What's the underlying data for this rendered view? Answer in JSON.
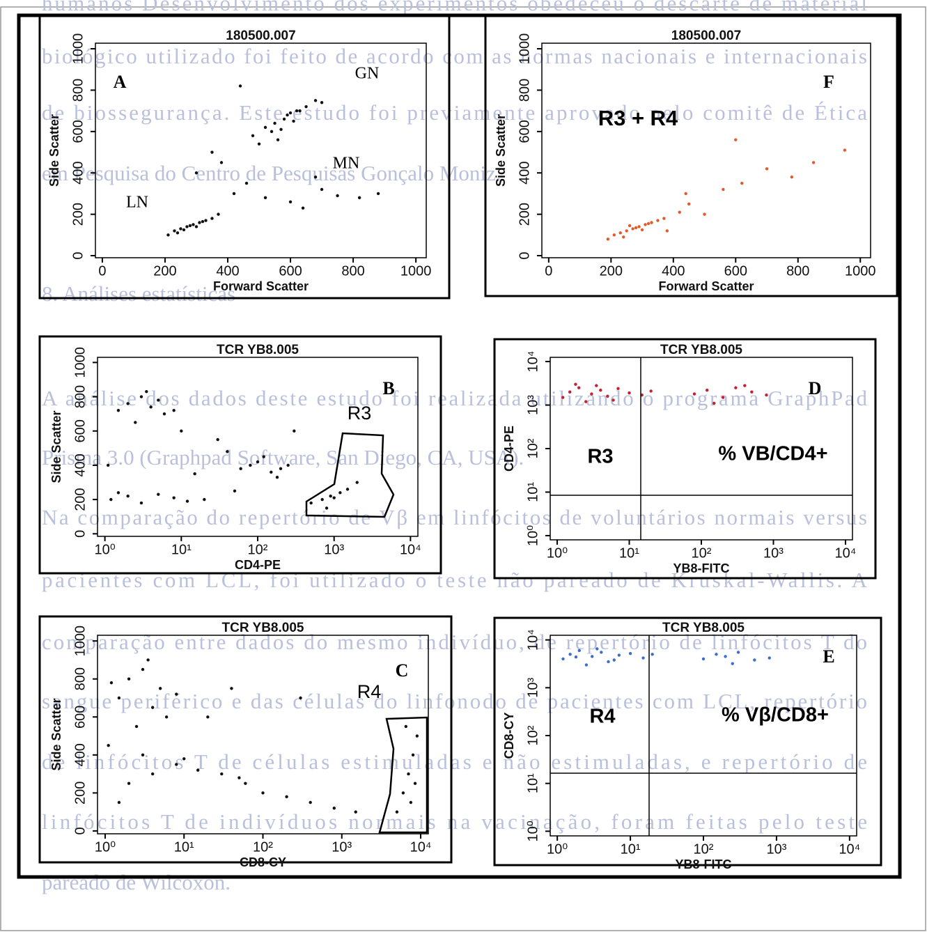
{
  "background_text": [
    "humanos Desenvolvimento dos experimentos obedeceu o descarte de material",
    "biológico utilizado foi feito de acordo com as normas nacionais e internacionais",
    "de biossegurança. Este estudo foi previamente aprovado pelo comitê de Ética",
    "em Pesquisa do Centro de Pesquisas Gonçalo Moniz.",
    "8. Análises estatísticas",
    "A análise dos dados deste estudo foi realizada utilizando o programa GraphPad",
    "Prisma 3.0 (Graphpad Software, San Diego, CA, USA).",
    "Na comparação do repertório de Vβ em linfócitos de voluntários normais versus",
    "pacientes com LCL, foi utilizado o teste não pareado de Kruskal-Wallis. A",
    "comparação entre dados do mesmo indivíduo, de repertório de linfócitos T do",
    "sangue periférico e das células do linfonodo de pacientes com LCL, repertório",
    "de linfócitos T de células estimuladas e não estimuladas, e repertório de",
    "linfócitos T de indivíduos normais na vacinação, foram feitas pelo teste",
    "pareado de Wilcoxon."
  ],
  "chart_data": [
    {
      "type": "scatter",
      "title": "180500.007",
      "x_label": "Forward Scatter",
      "y_label": "Side Scatter",
      "xscale": "linear",
      "yscale": "linear",
      "xlim": [
        -22,
        1033
      ],
      "ylim": [
        -10,
        1027
      ],
      "xticks": [
        0,
        200,
        400,
        600,
        800,
        1000
      ],
      "yticks": [
        0,
        200,
        400,
        600,
        800,
        1000
      ],
      "annotations": [
        "A",
        "GN",
        "MN",
        "LN"
      ],
      "series": [
        {
          "color": "#111111",
          "x": [
            210,
            230,
            250,
            270,
            290,
            310,
            330,
            350,
            240,
            280,
            300,
            320,
            260,
            370,
            480,
            520,
            550,
            580,
            600,
            620,
            650,
            680,
            540,
            570,
            610,
            590,
            630,
            560,
            500,
            700,
            420,
            460,
            520,
            600,
            700,
            750,
            820,
            880,
            380,
            350,
            440,
            300,
            680,
            640
          ],
          "values": [
            100,
            120,
            130,
            140,
            150,
            160,
            170,
            180,
            110,
            145,
            140,
            165,
            125,
            200,
            580,
            620,
            640,
            660,
            690,
            700,
            720,
            750,
            600,
            610,
            650,
            680,
            700,
            560,
            540,
            740,
            300,
            350,
            280,
            260,
            320,
            290,
            280,
            300,
            450,
            500,
            820,
            400,
            380,
            230
          ]
        }
      ]
    },
    {
      "type": "scatter",
      "title": "180500.007",
      "x_label": "Forward Scatter",
      "y_label": "Side Scatter",
      "xscale": "linear",
      "yscale": "linear",
      "xlim": [
        -22,
        1033
      ],
      "ylim": [
        -10,
        1027
      ],
      "xticks": [
        0,
        200,
        400,
        600,
        800,
        1000
      ],
      "yticks": [
        0,
        200,
        400,
        600,
        800,
        1000
      ],
      "annotations": [
        "F",
        "R3 + R4"
      ],
      "series": [
        {
          "color": "#e25a2a",
          "x": [
            190,
            210,
            230,
            250,
            270,
            290,
            310,
            330,
            350,
            370,
            240,
            280,
            300,
            320,
            260,
            380,
            420,
            450,
            500,
            560,
            620,
            700,
            780,
            850,
            950,
            600,
            440
          ],
          "values": [
            80,
            100,
            110,
            120,
            130,
            140,
            150,
            160,
            170,
            180,
            90,
            135,
            125,
            155,
            145,
            120,
            210,
            250,
            200,
            320,
            350,
            420,
            380,
            450,
            510,
            560,
            300
          ]
        }
      ]
    },
    {
      "type": "scatter",
      "title": "TCR YB8.005",
      "x_label": "CD4-PE",
      "y_label": "Side Scatter",
      "xscale": "log",
      "yscale": "linear",
      "xlim": [
        0.8,
        12500
      ],
      "ylim": [
        -15,
        1030
      ],
      "xticks": [
        {
          "value": 1,
          "label": "10⁰"
        },
        {
          "value": 10,
          "label": "10¹"
        },
        {
          "value": 100,
          "label": "10²"
        },
        {
          "value": 1000,
          "label": "10³"
        },
        {
          "value": 10000,
          "label": "10⁴"
        }
      ],
      "yticks": [
        0,
        200,
        400,
        600,
        800,
        1000
      ],
      "annotations": [
        "B",
        "R3"
      ],
      "series": [
        {
          "color": "#111111",
          "x": [
            1.5,
            2,
            3,
            4,
            5,
            6,
            8,
            2.5,
            3.5,
            10,
            1.2,
            1.5,
            2,
            3,
            5,
            8,
            12,
            20,
            60,
            80,
            100,
            150,
            200,
            250,
            120,
            180,
            500,
            700,
            900,
            1200,
            1500,
            800,
            1000,
            30,
            40,
            15,
            300,
            2000,
            1.1,
            50
          ],
          "values": [
            720,
            760,
            800,
            740,
            780,
            700,
            720,
            650,
            830,
            600,
            200,
            240,
            220,
            180,
            230,
            210,
            190,
            200,
            380,
            400,
            420,
            360,
            380,
            400,
            450,
            330,
            180,
            200,
            220,
            240,
            260,
            150,
            210,
            550,
            480,
            350,
            600,
            300,
            400,
            250
          ]
        }
      ]
    },
    {
      "type": "scatter",
      "title": "TCR YB8.005",
      "x_label": "YB8-FITC",
      "y_label": "CD4-PE",
      "xscale": "log",
      "yscale": "log",
      "xlim": [
        0.8,
        12500
      ],
      "ylim": [
        0.8,
        12500
      ],
      "xticks": [
        {
          "value": 1,
          "label": "10⁰"
        },
        {
          "value": 10,
          "label": "10¹"
        },
        {
          "value": 100,
          "label": "10²"
        },
        {
          "value": 1000,
          "label": "10³"
        },
        {
          "value": 10000,
          "label": "10⁴"
        }
      ],
      "yticks": [
        {
          "value": 1,
          "label": "10⁰"
        },
        {
          "value": 10,
          "label": "10¹"
        },
        {
          "value": 100,
          "label": "10²"
        },
        {
          "value": 1000,
          "label": "10³"
        },
        {
          "value": 10000,
          "label": "10⁴"
        }
      ],
      "annotations": [
        "D",
        "R3",
        "% VB/CD4+"
      ],
      "series": [
        {
          "color": "#c81e32",
          "x": [
            1.2,
            1.5,
            2,
            3,
            4,
            5,
            7,
            10,
            15,
            2.5,
            3.5,
            6,
            1.8,
            20,
            80,
            120,
            200,
            300,
            500,
            800,
            150,
            400
          ],
          "values": [
            1500,
            2000,
            2500,
            1800,
            2200,
            1600,
            2400,
            1900,
            1700,
            1200,
            2800,
            1300,
            3000,
            2100,
            1800,
            2200,
            1500,
            2500,
            2000,
            1700,
            1100,
            2800
          ]
        }
      ]
    },
    {
      "type": "scatter",
      "title": "TCR YB8.005",
      "x_label": "CD8-CY",
      "y_label": "Side Scatter",
      "xscale": "log",
      "yscale": "linear",
      "xlim": [
        0.8,
        12500
      ],
      "ylim": [
        -15,
        1030
      ],
      "xticks": [
        {
          "value": 1,
          "label": "10⁰"
        },
        {
          "value": 10,
          "label": "10¹"
        },
        {
          "value": 100,
          "label": "10²"
        },
        {
          "value": 1000,
          "label": "10³"
        },
        {
          "value": 10000,
          "label": "10⁴"
        }
      ],
      "yticks": [
        0,
        200,
        400,
        600,
        800,
        1000
      ],
      "annotations": [
        "C",
        "R4"
      ],
      "series": [
        {
          "color": "#111111",
          "x": [
            1.5,
            2,
            3,
            4,
            5,
            6,
            8,
            2.5,
            3.5,
            1.2,
            1.5,
            2,
            4,
            8,
            15,
            30,
            60,
            100,
            200,
            400,
            800,
            1500,
            3,
            10,
            50,
            5000,
            6000,
            7000,
            8000,
            9000,
            7500,
            8500,
            6500,
            20,
            40,
            300,
            1.1
          ],
          "values": [
            700,
            800,
            850,
            650,
            750,
            600,
            720,
            550,
            900,
            780,
            150,
            250,
            300,
            350,
            320,
            300,
            250,
            200,
            180,
            150,
            120,
            100,
            400,
            380,
            280,
            100,
            200,
            300,
            400,
            500,
            150,
            250,
            550,
            600,
            750,
            700,
            450
          ]
        }
      ]
    },
    {
      "type": "scatter",
      "title": "TCR YB8.005",
      "x_label": "YB8-FITC",
      "y_label": "CD8-CY",
      "xscale": "log",
      "yscale": "log",
      "xlim": [
        0.8,
        12500
      ],
      "ylim": [
        0.8,
        12500
      ],
      "xticks": [
        {
          "value": 1,
          "label": "10⁰"
        },
        {
          "value": 10,
          "label": "10¹"
        },
        {
          "value": 100,
          "label": "10²"
        },
        {
          "value": 1000,
          "label": "10³"
        },
        {
          "value": 10000,
          "label": "10⁴"
        }
      ],
      "yticks": [
        {
          "value": 1,
          "label": "10⁰"
        },
        {
          "value": 10,
          "label": "10¹"
        },
        {
          "value": 100,
          "label": "10²"
        },
        {
          "value": 1000,
          "label": "10³"
        },
        {
          "value": 10000,
          "label": "10⁴"
        }
      ],
      "annotations": [
        "E",
        "R4",
        "% Vβ/CD8+"
      ],
      "series": [
        {
          "color": "#3c6ec8",
          "x": [
            1.2,
            1.5,
            2,
            3,
            4,
            5,
            7,
            10,
            15,
            2.5,
            3.5,
            6,
            1.8,
            20,
            100,
            150,
            200,
            300,
            500,
            800,
            250
          ],
          "values": [
            4000,
            5000,
            6000,
            4500,
            5500,
            3500,
            4800,
            5200,
            4200,
            3000,
            6500,
            3800,
            4400,
            5000,
            4000,
            5000,
            4500,
            5500,
            3800,
            4200,
            3200
          ]
        }
      ]
    }
  ]
}
